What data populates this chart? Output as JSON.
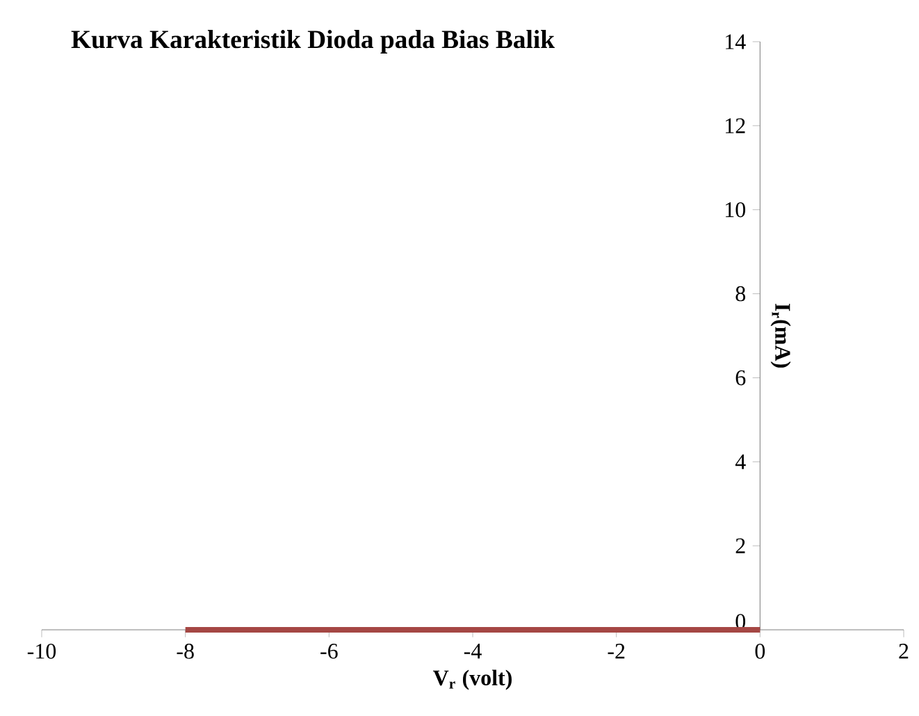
{
  "chart_data": {
    "type": "line",
    "title": "Kurva Karakteristik Dioda pada Bias Balik",
    "xlabel": "V$_{r}$ (volt)",
    "ylabel": "I$_{r}$(mA)",
    "x": [
      -8,
      0
    ],
    "series": [
      {
        "color": "#a54744",
        "values": [
          0,
          0
        ]
      }
    ],
    "xlim": [
      -10,
      2
    ],
    "ylim": [
      0,
      14
    ],
    "xticks": [
      -10,
      -8,
      -6,
      -4,
      -2,
      0,
      2
    ],
    "yticks": [
      0,
      2,
      4,
      6,
      8,
      10,
      12,
      14
    ]
  }
}
